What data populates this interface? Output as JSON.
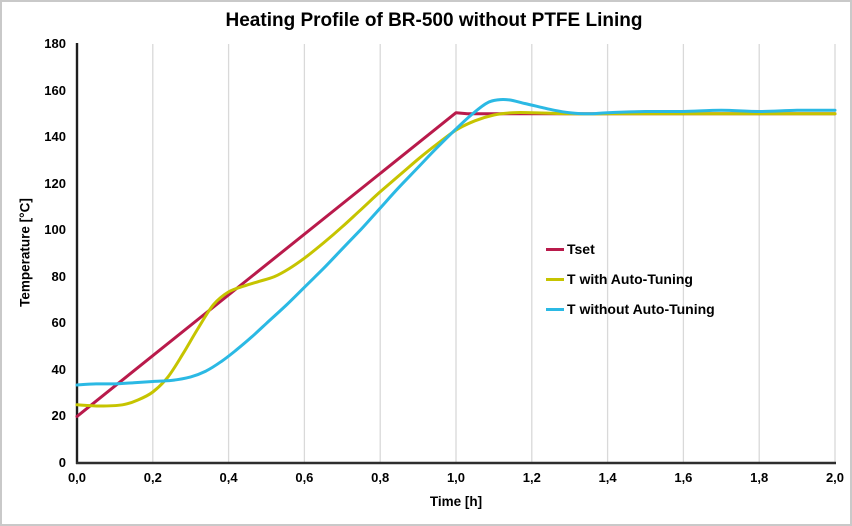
{
  "chart_data": {
    "type": "line",
    "title": "Heating Profile of BR-500 without PTFE Lining",
    "xlabel": "Time [h]",
    "ylabel": "Temperature [°C]",
    "xlim": [
      0,
      2
    ],
    "ylim": [
      0,
      180
    ],
    "grid": "vertical-only",
    "gridline_color": "#d9d9d9",
    "axis_color": "#2e2e2e",
    "legend_position": "middle-right",
    "x_ticks": {
      "values": [
        0,
        0.2,
        0.4,
        0.6,
        0.8,
        1.0,
        1.2,
        1.4,
        1.6,
        1.8,
        2.0
      ],
      "labels": [
        "0,0",
        "0,2",
        "0,4",
        "0,6",
        "0,8",
        "1,0",
        "1,2",
        "1,4",
        "1,6",
        "1,8",
        "2,0"
      ]
    },
    "y_ticks": {
      "values": [
        0,
        20,
        40,
        60,
        80,
        100,
        120,
        140,
        160,
        180
      ],
      "labels": [
        "0",
        "20",
        "40",
        "60",
        "80",
        "100",
        "120",
        "140",
        "160",
        "180"
      ]
    },
    "series": [
      {
        "name": "Tset",
        "color": "#b91a4b",
        "smooth": false,
        "x": [
          0,
          1.0,
          1.03,
          2.0
        ],
        "y": [
          20,
          150.5,
          150,
          150
        ]
      },
      {
        "name": "T with Auto-Tuning",
        "color": "#c6c400",
        "smooth": true,
        "x": [
          0,
          0.06,
          0.12,
          0.16,
          0.2,
          0.24,
          0.28,
          0.32,
          0.36,
          0.4,
          0.44,
          0.48,
          0.52,
          0.56,
          0.6,
          0.65,
          0.7,
          0.75,
          0.8,
          0.85,
          0.9,
          0.95,
          1.0,
          1.05,
          1.1,
          1.15,
          1.2,
          1.3,
          1.4,
          1.5,
          1.6,
          1.7,
          1.8,
          1.9,
          2.0
        ],
        "y": [
          25,
          24.5,
          25,
          27,
          30.5,
          37,
          47,
          58,
          68,
          73.5,
          76,
          78,
          80,
          83.5,
          88,
          94.5,
          101.5,
          109,
          116.5,
          123.5,
          130.5,
          137,
          143,
          147,
          149.5,
          150.5,
          150.5,
          150,
          150,
          150,
          150,
          150,
          150,
          150,
          150
        ]
      },
      {
        "name": "T without Auto-Tuning",
        "color": "#2bb9e4",
        "smooth": true,
        "x": [
          0,
          0.05,
          0.1,
          0.15,
          0.2,
          0.25,
          0.3,
          0.34,
          0.38,
          0.42,
          0.46,
          0.5,
          0.55,
          0.6,
          0.65,
          0.7,
          0.75,
          0.8,
          0.85,
          0.9,
          0.95,
          1.0,
          1.04,
          1.08,
          1.11,
          1.14,
          1.18,
          1.22,
          1.26,
          1.3,
          1.35,
          1.4,
          1.5,
          1.6,
          1.7,
          1.8,
          1.9,
          2.0
        ],
        "y": [
          33.5,
          34,
          34,
          34.5,
          35,
          35.5,
          37,
          39.5,
          43.5,
          48.5,
          54,
          60,
          67.5,
          75.5,
          83.5,
          92,
          100.5,
          109.5,
          118.5,
          127,
          135.5,
          143.5,
          149.5,
          154.5,
          156,
          156,
          154.5,
          153,
          151.5,
          150.5,
          150,
          150.5,
          151,
          151,
          151.5,
          151,
          151.5,
          151.5
        ]
      }
    ]
  }
}
